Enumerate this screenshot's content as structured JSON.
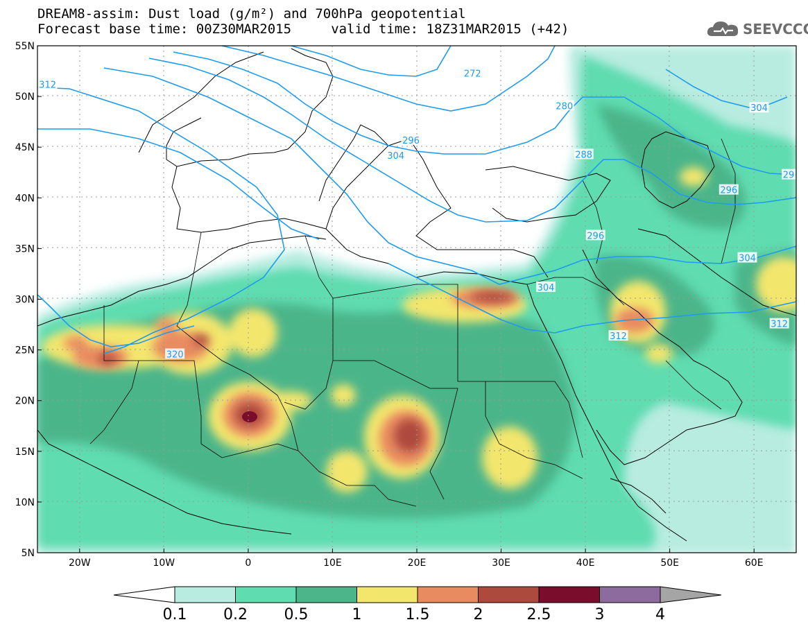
{
  "title": {
    "line1": "DREAM8-assim: Dust load (g/m²) and 700hPa geopotential",
    "line2": "Forecast base time: 00Z30MAR2015     valid time: 18Z31MAR2015 (+42)"
  },
  "logo": {
    "text": "SEEVCCC",
    "icon": "cloud-logo-icon"
  },
  "colors": {
    "contour": "#1e9bef",
    "levels": [
      "#b8ece0",
      "#5fdcb0",
      "#4cb58a",
      "#f3e66d",
      "#e98b60",
      "#ad4a3e",
      "#7a0d2c",
      "#8d6b9e",
      "#a5a5a5"
    ]
  },
  "map": {
    "lat_labels": [
      "55N",
      "50N",
      "45N",
      "40N",
      "35N",
      "30N",
      "25N",
      "20N",
      "15N",
      "10N",
      "5N"
    ],
    "lon_labels": [
      "20W",
      "10W",
      "0",
      "10E",
      "20E",
      "30E",
      "40E",
      "50E",
      "60E"
    ],
    "lat_range": [
      5,
      55
    ],
    "lon_range": [
      -25,
      65
    ],
    "contour_labels": [
      {
        "text": "312",
        "lon": -23.8,
        "lat": 51.2
      },
      {
        "text": "272",
        "lon": 26.6,
        "lat": 52.3
      },
      {
        "text": "280",
        "lon": 37.5,
        "lat": 49.1
      },
      {
        "text": "296",
        "lon": 19.3,
        "lat": 45.7
      },
      {
        "text": "304",
        "lon": 17.5,
        "lat": 44.2
      },
      {
        "text": "288",
        "lon": 39.8,
        "lat": 44.3
      },
      {
        "text": "296",
        "lon": 41.2,
        "lat": 36.3
      },
      {
        "text": "304",
        "lon": 60.6,
        "lat": 48.9
      },
      {
        "text": "296",
        "lon": 57.0,
        "lat": 40.8
      },
      {
        "text": "29",
        "lon": 64.1,
        "lat": 42.3
      },
      {
        "text": "304",
        "lon": 35.3,
        "lat": 31.2
      },
      {
        "text": "304",
        "lon": 59.2,
        "lat": 34.1
      },
      {
        "text": "312",
        "lon": 43.9,
        "lat": 26.4
      },
      {
        "text": "312",
        "lon": 63.0,
        "lat": 27.6
      },
      {
        "text": "320",
        "lon": -8.7,
        "lat": 24.6
      }
    ]
  },
  "colorbar": {
    "ticks": [
      "0.1",
      "0.2",
      "0.5",
      "1",
      "1.5",
      "2",
      "2.5",
      "3",
      "4"
    ]
  }
}
